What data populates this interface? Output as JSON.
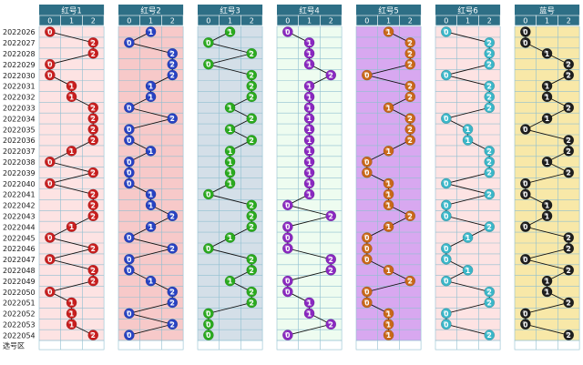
{
  "chart_data": {
    "type": "scatter",
    "title": "",
    "columns": [
      "0",
      "1",
      "2"
    ],
    "footer_label": "选号区",
    "periods": [
      "2022026",
      "2022027",
      "2022028",
      "2022029",
      "2022030",
      "2022031",
      "2022032",
      "2022033",
      "2022034",
      "2022035",
      "2022036",
      "2022037",
      "2022038",
      "2022039",
      "2022040",
      "2022041",
      "2022042",
      "2022043",
      "2022044",
      "2022045",
      "2022046",
      "2022047",
      "2022048",
      "2022049",
      "2022050",
      "2022051",
      "2022052",
      "2022053",
      "2022054"
    ],
    "series": [
      {
        "name": "红号1",
        "color": "#c81e1e",
        "bg": "#fde3e3",
        "values": [
          0,
          2,
          2,
          0,
          0,
          1,
          1,
          2,
          2,
          2,
          2,
          1,
          0,
          2,
          0,
          2,
          2,
          2,
          1,
          0,
          2,
          0,
          2,
          2,
          0,
          1,
          1,
          1,
          2
        ]
      },
      {
        "name": "红号2",
        "color": "#2742c2",
        "bg": "#f7c9c9",
        "values": [
          1,
          0,
          2,
          2,
          2,
          1,
          1,
          0,
          2,
          0,
          0,
          1,
          0,
          0,
          0,
          1,
          1,
          2,
          1,
          0,
          2,
          0,
          0,
          1,
          2,
          2,
          0,
          2,
          0
        ]
      },
      {
        "name": "红号3",
        "color": "#2aaa1e",
        "bg": "#d4dfe8",
        "values": [
          1,
          0,
          2,
          0,
          2,
          2,
          2,
          1,
          2,
          1,
          2,
          1,
          1,
          1,
          1,
          0,
          2,
          2,
          2,
          1,
          0,
          2,
          2,
          1,
          2,
          2,
          0,
          0,
          0
        ]
      },
      {
        "name": "红号4",
        "color": "#8a28c0",
        "bg": "#eefcf0",
        "values": [
          0,
          1,
          1,
          1,
          2,
          1,
          1,
          1,
          1,
          1,
          1,
          1,
          1,
          1,
          1,
          1,
          0,
          2,
          0,
          0,
          0,
          2,
          2,
          0,
          0,
          1,
          1,
          2,
          0
        ]
      },
      {
        "name": "红号5",
        "color": "#c86818",
        "bg": "#d8a8f0",
        "values": [
          1,
          2,
          2,
          2,
          0,
          2,
          2,
          1,
          2,
          2,
          2,
          1,
          0,
          0,
          1,
          1,
          1,
          2,
          1,
          0,
          0,
          0,
          1,
          2,
          0,
          0,
          1,
          1,
          1
        ]
      },
      {
        "name": "红号6",
        "color": "#3ab6c8",
        "bg": "#fde3e3",
        "values": [
          0,
          2,
          2,
          2,
          0,
          2,
          2,
          2,
          0,
          1,
          1,
          2,
          2,
          2,
          0,
          2,
          0,
          0,
          2,
          1,
          0,
          0,
          1,
          0,
          2,
          2,
          0,
          0,
          2
        ]
      },
      {
        "name": "蓝号",
        "color": "#1e1e1e",
        "bg": "#f8e8a8",
        "values": [
          0,
          0,
          1,
          2,
          2,
          1,
          1,
          2,
          1,
          0,
          2,
          2,
          1,
          2,
          0,
          0,
          1,
          1,
          0,
          2,
          2,
          0,
          2,
          1,
          1,
          2,
          0,
          0,
          2
        ]
      }
    ]
  }
}
